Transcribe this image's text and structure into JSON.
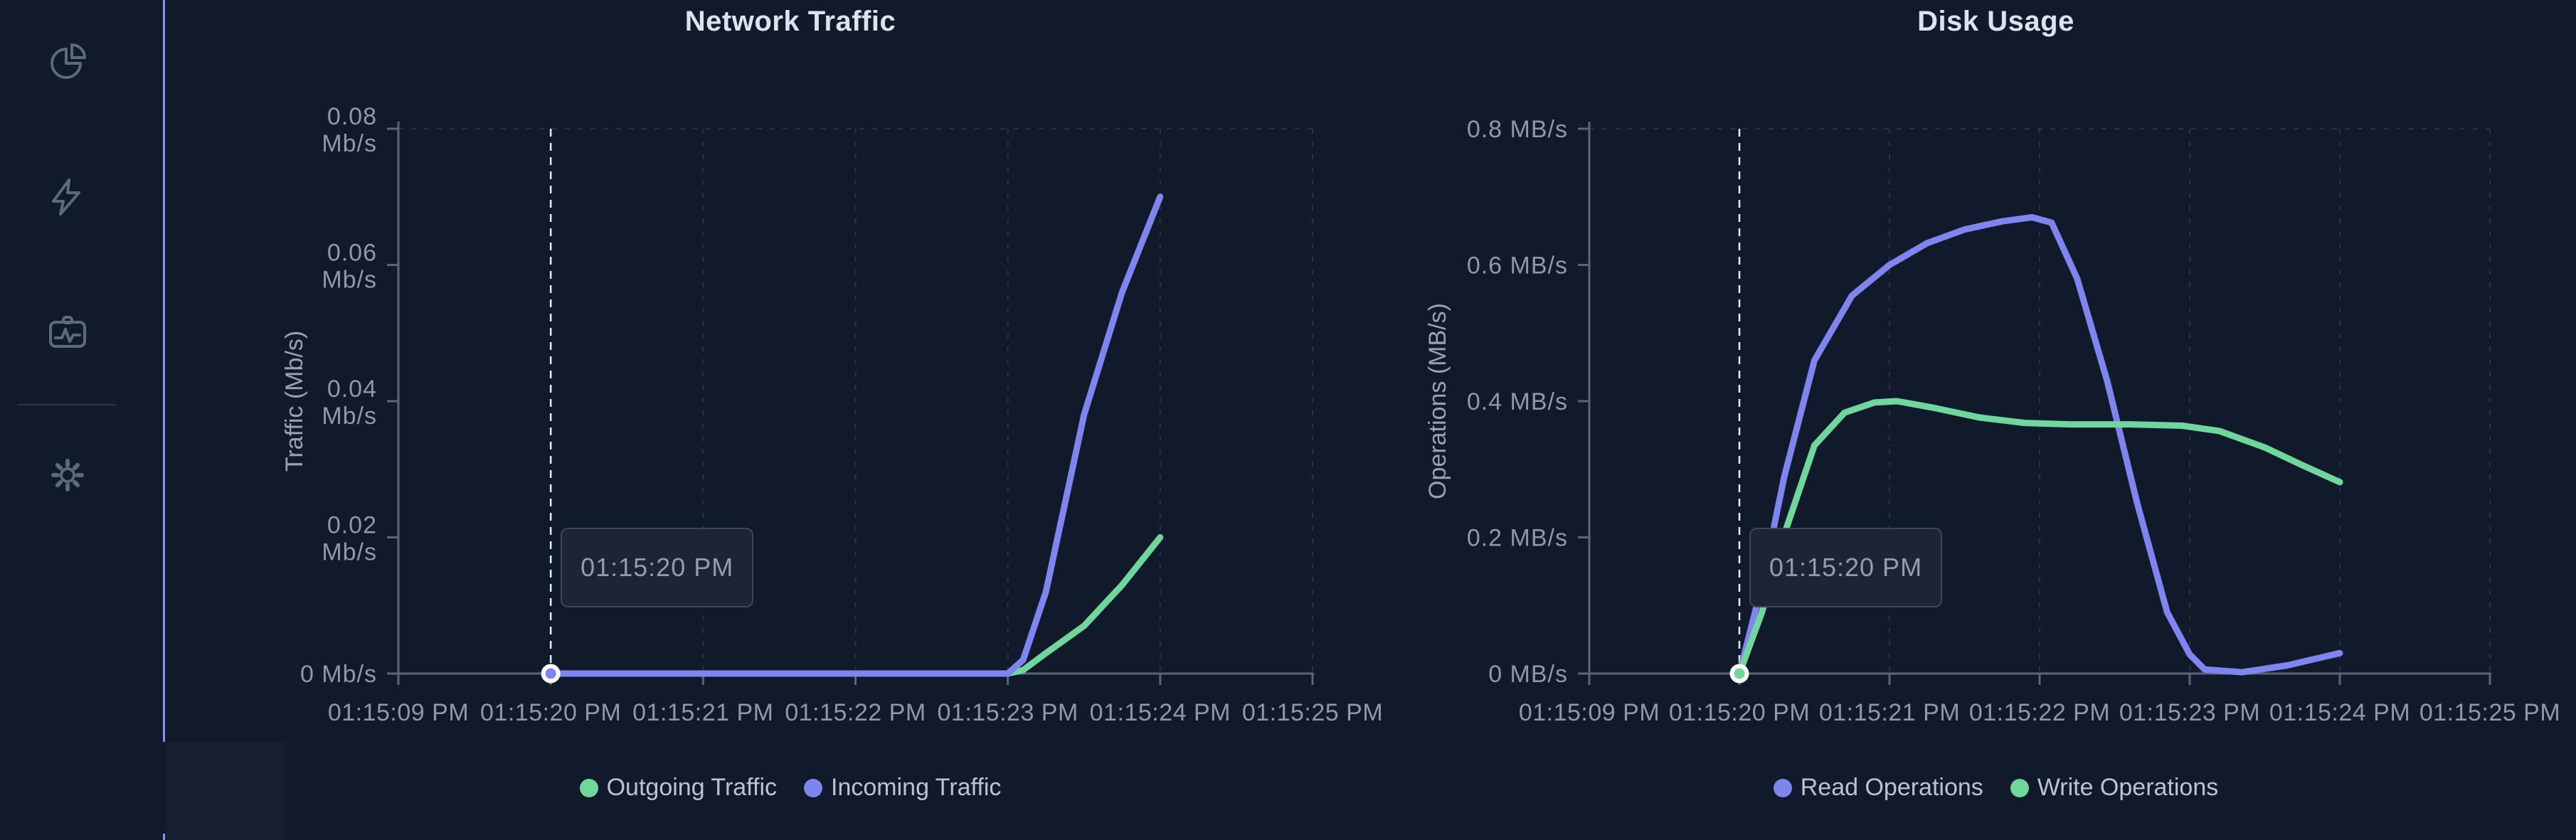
{
  "page": {
    "background": "#111a2b",
    "accent_border_color": "#8990f1"
  },
  "sidebar": {
    "items": [
      {
        "icon": "pie-chart-icon"
      },
      {
        "icon": "lightning-icon"
      },
      {
        "icon": "activity-monitor-icon"
      },
      {
        "icon": "gear-icon"
      }
    ]
  },
  "chart_data": [
    {
      "type": "line",
      "title": "Network Traffic",
      "ylabel": "Traffic (Mb/s)",
      "ylim": [
        0,
        0.08
      ],
      "grid": "dashed-vertical-plus-top",
      "legend_position": "bottom",
      "x_tick_labels": [
        "01:15:09 PM",
        "01:15:20 PM",
        "01:15:21 PM",
        "01:15:22 PM",
        "01:15:23 PM",
        "01:15:24 PM",
        "01:15:25 PM"
      ],
      "y_ticks": [
        {
          "value": 0,
          "label": "0 Mb/s"
        },
        {
          "value": 0.02,
          "label": "0.02\nMb/s"
        },
        {
          "value": 0.04,
          "label": "0.04\nMb/s"
        },
        {
          "value": 0.06,
          "label": "0.06\nMb/s"
        },
        {
          "value": 0.08,
          "label": "0.08\nMb/s"
        }
      ],
      "x_unit": "tick_index",
      "series": [
        {
          "name": "Outgoing Traffic",
          "color": "#6fd69c",
          "points": [
            [
              1,
              0
            ],
            [
              2,
              0
            ],
            [
              3,
              0
            ],
            [
              4,
              0
            ],
            [
              4.1,
              0.0005
            ],
            [
              4.25,
              0.003
            ],
            [
              4.5,
              0.007
            ],
            [
              4.75,
              0.013
            ],
            [
              5,
              0.02
            ]
          ]
        },
        {
          "name": "Incoming Traffic",
          "color": "#7e85ee",
          "points": [
            [
              1,
              0
            ],
            [
              2,
              0
            ],
            [
              3,
              0
            ],
            [
              4,
              0
            ],
            [
              4.1,
              0.002
            ],
            [
              4.25,
              0.012
            ],
            [
              4.5,
              0.038
            ],
            [
              4.75,
              0.056
            ],
            [
              5,
              0.07
            ]
          ]
        }
      ],
      "cursor": {
        "label": "01:15:20 PM",
        "x_index": 1,
        "y_value": 0,
        "dot_color": "#7e85ee"
      }
    },
    {
      "type": "line",
      "title": "Disk Usage",
      "ylabel": "Operations (MB/s)",
      "ylim": [
        0,
        0.8
      ],
      "grid": "dashed-vertical-plus-top",
      "legend_position": "bottom",
      "x_tick_labels": [
        "01:15:09 PM",
        "01:15:20 PM",
        "01:15:21 PM",
        "01:15:22 PM",
        "01:15:23 PM",
        "01:15:24 PM",
        "01:15:25 PM"
      ],
      "y_ticks": [
        {
          "value": 0,
          "label": "0 MB/s"
        },
        {
          "value": 0.2,
          "label": "0.2 MB/s"
        },
        {
          "value": 0.4,
          "label": "0.4 MB/s"
        },
        {
          "value": 0.6,
          "label": "0.6 MB/s"
        },
        {
          "value": 0.8,
          "label": "0.8 MB/s"
        }
      ],
      "x_unit": "tick_index",
      "series": [
        {
          "name": "Read Operations",
          "color": "#7e85ee",
          "points": [
            [
              1,
              0
            ],
            [
              1.15,
              0.13
            ],
            [
              1.3,
              0.29
            ],
            [
              1.5,
              0.46
            ],
            [
              1.75,
              0.555
            ],
            [
              2,
              0.6
            ],
            [
              2.25,
              0.632
            ],
            [
              2.5,
              0.652
            ],
            [
              2.75,
              0.664
            ],
            [
              2.95,
              0.67
            ],
            [
              3.08,
              0.662
            ],
            [
              3.25,
              0.58
            ],
            [
              3.45,
              0.43
            ],
            [
              3.65,
              0.25
            ],
            [
              3.85,
              0.09
            ],
            [
              4,
              0.028
            ],
            [
              4.1,
              0.006
            ],
            [
              4.35,
              0.002
            ],
            [
              4.65,
              0.012
            ],
            [
              5,
              0.03
            ]
          ]
        },
        {
          "name": "Write Operations",
          "color": "#6fd69c",
          "points": [
            [
              1,
              0
            ],
            [
              1.15,
              0.09
            ],
            [
              1.3,
              0.205
            ],
            [
              1.5,
              0.335
            ],
            [
              1.7,
              0.383
            ],
            [
              1.9,
              0.398
            ],
            [
              2.05,
              0.4
            ],
            [
              2.3,
              0.39
            ],
            [
              2.6,
              0.376
            ],
            [
              2.9,
              0.368
            ],
            [
              3.2,
              0.366
            ],
            [
              3.6,
              0.366
            ],
            [
              3.95,
              0.364
            ],
            [
              4.2,
              0.356
            ],
            [
              4.5,
              0.332
            ],
            [
              4.75,
              0.306
            ],
            [
              5,
              0.281
            ]
          ]
        }
      ],
      "cursor": {
        "label": "01:15:20 PM",
        "x_index": 1,
        "y_value": 0,
        "dot_color": "#6fd69c"
      }
    }
  ]
}
